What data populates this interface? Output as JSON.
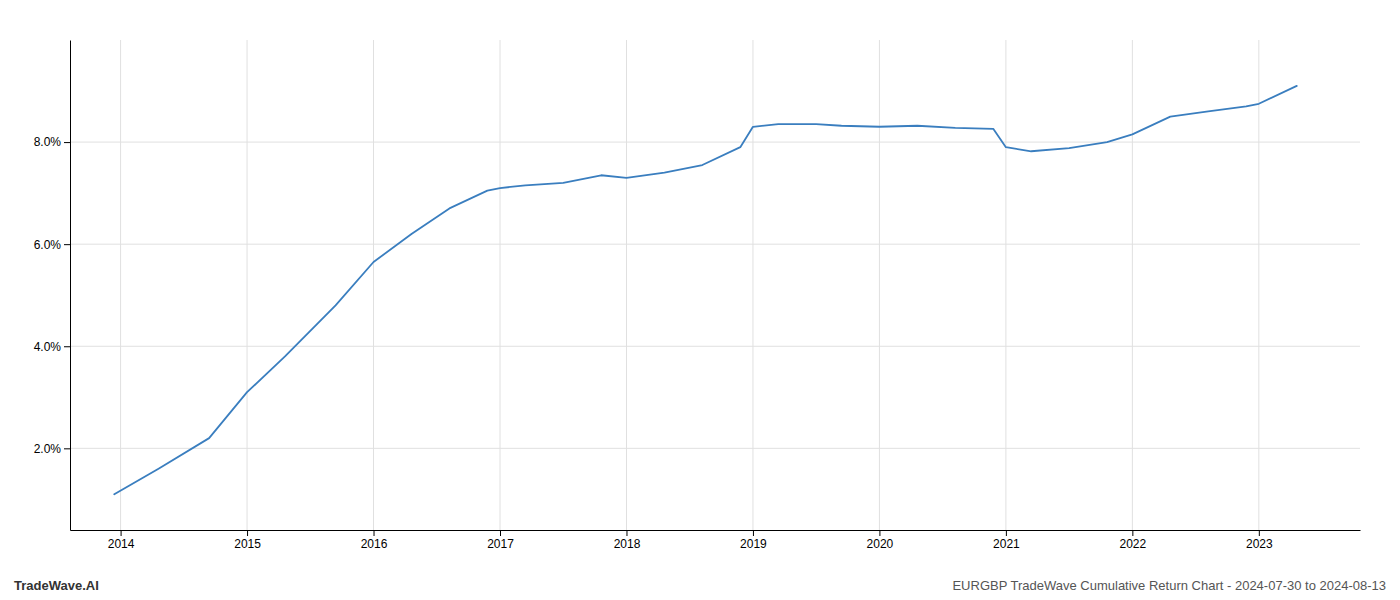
{
  "chart_data": {
    "type": "line",
    "x": [
      2013.95,
      2014.3,
      2014.7,
      2015.0,
      2015.3,
      2015.7,
      2016.0,
      2016.3,
      2016.6,
      2016.9,
      2017.0,
      2017.2,
      2017.5,
      2017.8,
      2018.0,
      2018.3,
      2018.6,
      2018.9,
      2019.0,
      2019.2,
      2019.5,
      2019.7,
      2020.0,
      2020.3,
      2020.6,
      2020.9,
      2021.0,
      2021.2,
      2021.5,
      2021.8,
      2022.0,
      2022.3,
      2022.6,
      2022.9,
      2023.0,
      2023.3
    ],
    "values": [
      1.1,
      1.6,
      2.2,
      3.1,
      3.8,
      4.8,
      5.65,
      6.2,
      6.7,
      7.05,
      7.1,
      7.15,
      7.2,
      7.35,
      7.3,
      7.4,
      7.55,
      7.9,
      8.3,
      8.35,
      8.35,
      8.32,
      8.3,
      8.32,
      8.28,
      8.26,
      7.9,
      7.82,
      7.88,
      8.0,
      8.15,
      8.5,
      8.6,
      8.7,
      8.75,
      9.1
    ],
    "color": "#3a7ebf",
    "xlim": [
      2013.6,
      2023.8
    ],
    "ylim": [
      0.4,
      10.0
    ],
    "xticks": [
      2014,
      2015,
      2016,
      2017,
      2018,
      2019,
      2020,
      2021,
      2022,
      2023
    ],
    "yticks": [
      {
        "value": 2.0,
        "label": "2.0%"
      },
      {
        "value": 4.0,
        "label": "4.0%"
      },
      {
        "value": 6.0,
        "label": "6.0%"
      },
      {
        "value": 8.0,
        "label": "8.0%"
      }
    ],
    "grid": true,
    "annotations": [
      "TradeWave.AI",
      "EURGBP TradeWave Cumulative Return Chart - 2024-07-30 to 2024-08-13"
    ]
  }
}
